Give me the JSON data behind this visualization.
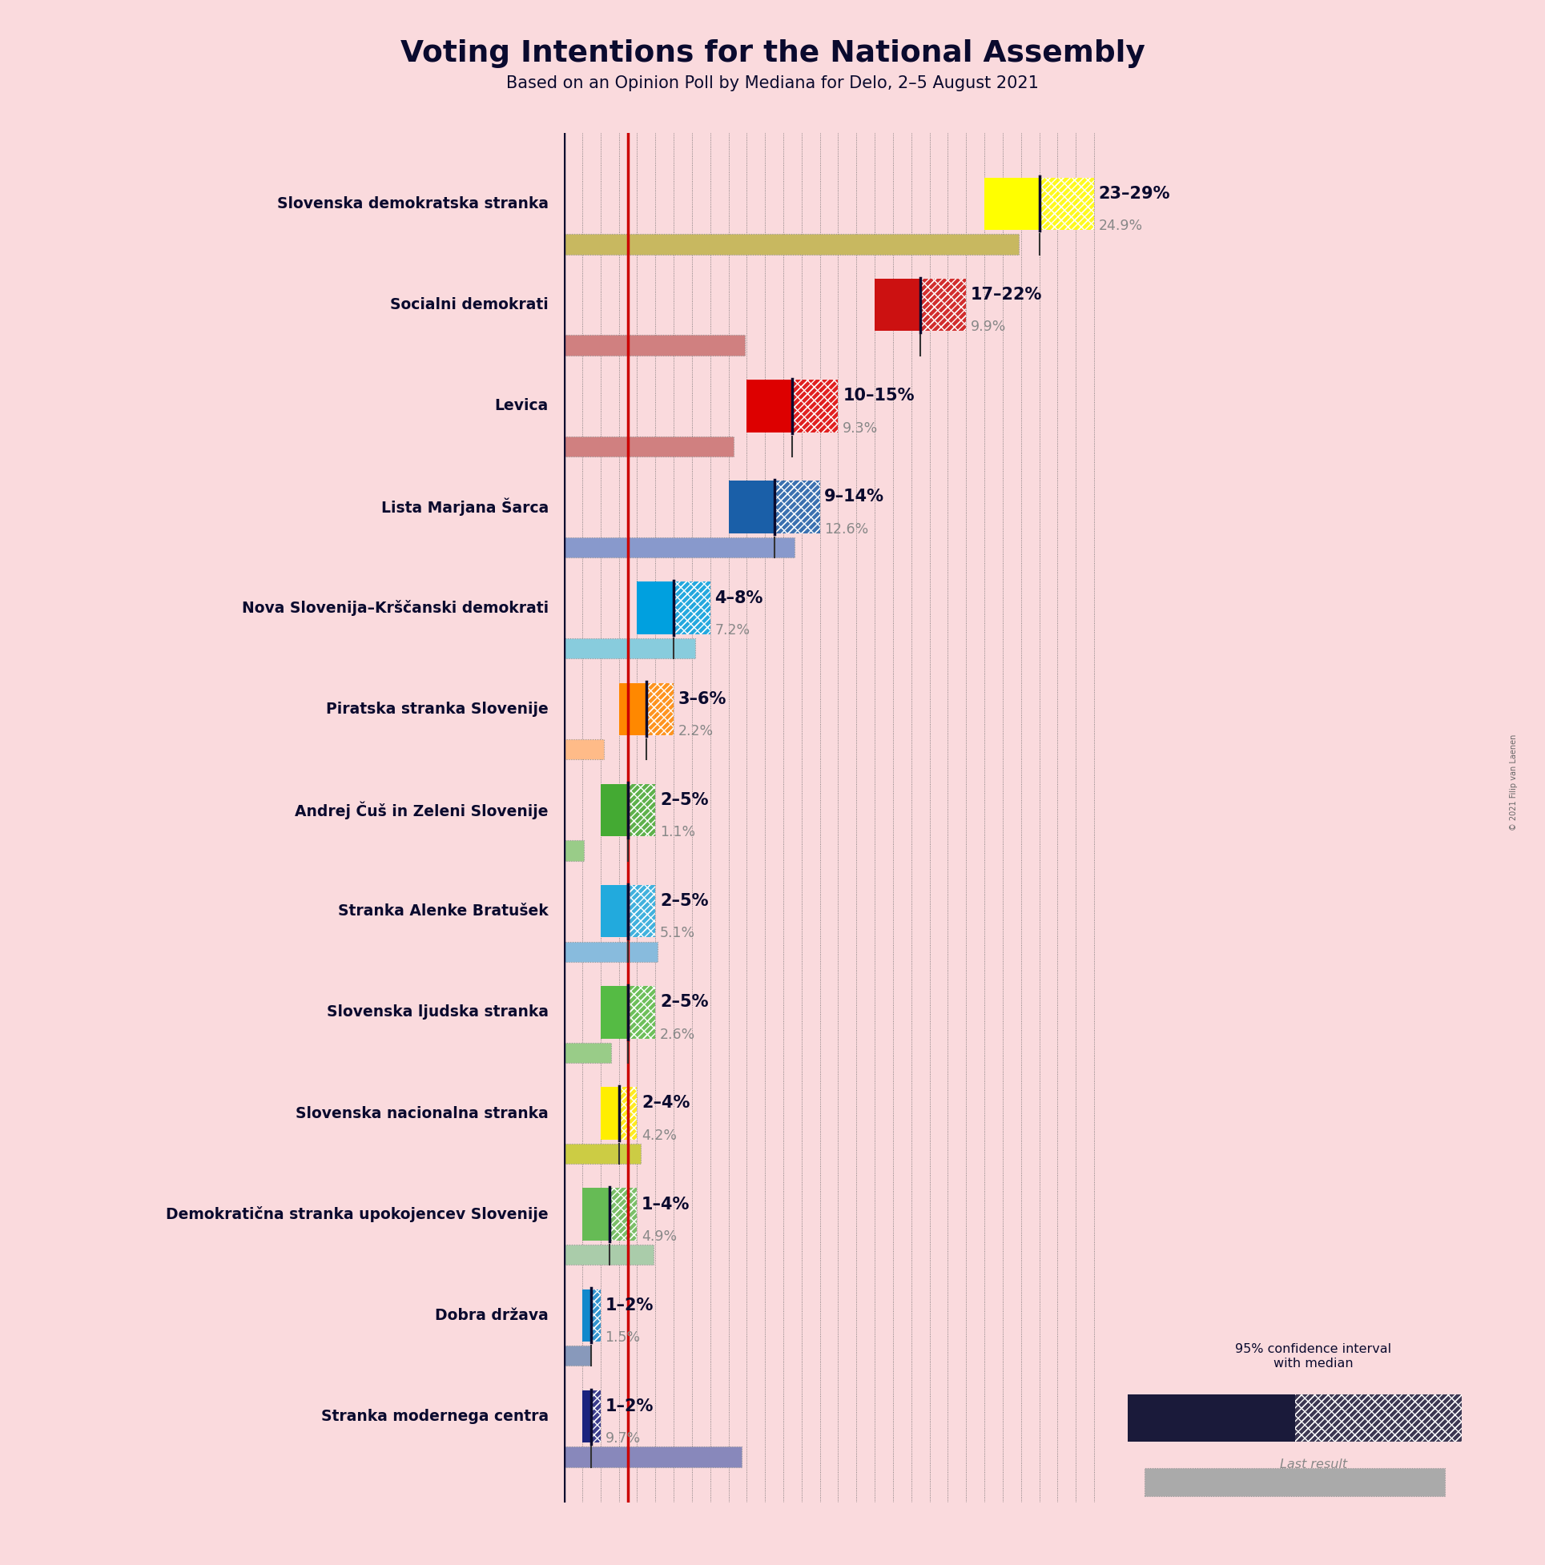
{
  "title": "Voting Intentions for the National Assembly",
  "subtitle": "Based on an Opinion Poll by Mediana for Delo, 2–5 August 2021",
  "background_color": "#fadadd",
  "parties": [
    {
      "name": "Slovenska demokratska stranka",
      "ci_low": 23,
      "ci_high": 29,
      "median": 26,
      "last_result": 24.9,
      "color": "#ffff00",
      "last_color": "#c8b860",
      "label": "23–29%",
      "last_label": "24.9%"
    },
    {
      "name": "Socialni demokrati",
      "ci_low": 17,
      "ci_high": 22,
      "median": 19.5,
      "last_result": 9.9,
      "color": "#cc1111",
      "last_color": "#d08080",
      "label": "17–22%",
      "last_label": "9.9%"
    },
    {
      "name": "Levica",
      "ci_low": 10,
      "ci_high": 15,
      "median": 12.5,
      "last_result": 9.3,
      "color": "#dd0000",
      "last_color": "#d08080",
      "label": "10–15%",
      "last_label": "9.3%"
    },
    {
      "name": "Lista Marjana Šarca",
      "ci_low": 9,
      "ci_high": 14,
      "median": 11.5,
      "last_result": 12.6,
      "color": "#1a5fa8",
      "last_color": "#8899cc",
      "label": "9–14%",
      "last_label": "12.6%"
    },
    {
      "name": "Nova Slovenija–Krščanski demokrati",
      "ci_low": 4,
      "ci_high": 8,
      "median": 6,
      "last_result": 7.2,
      "color": "#00a0df",
      "last_color": "#88ccdd",
      "label": "4–8%",
      "last_label": "7.2%"
    },
    {
      "name": "Piratska stranka Slovenije",
      "ci_low": 3,
      "ci_high": 6,
      "median": 4.5,
      "last_result": 2.2,
      "color": "#ff8800",
      "last_color": "#ffbb88",
      "label": "3–6%",
      "last_label": "2.2%"
    },
    {
      "name": "Andrej Čuš in Zeleni Slovenije",
      "ci_low": 2,
      "ci_high": 5,
      "median": 3.5,
      "last_result": 1.1,
      "color": "#44aa33",
      "last_color": "#99cc88",
      "label": "2–5%",
      "last_label": "1.1%"
    },
    {
      "name": "Stranka Alenke Bratušek",
      "ci_low": 2,
      "ci_high": 5,
      "median": 3.5,
      "last_result": 5.1,
      "color": "#22aadd",
      "last_color": "#88bbdd",
      "label": "2–5%",
      "last_label": "5.1%"
    },
    {
      "name": "Slovenska ljudska stranka",
      "ci_low": 2,
      "ci_high": 5,
      "median": 3.5,
      "last_result": 2.6,
      "color": "#55bb44",
      "last_color": "#99cc88",
      "label": "2–5%",
      "last_label": "2.6%"
    },
    {
      "name": "Slovenska nacionalna stranka",
      "ci_low": 2,
      "ci_high": 4,
      "median": 3,
      "last_result": 4.2,
      "color": "#ffee00",
      "last_color": "#cccc44",
      "label": "2–4%",
      "last_label": "4.2%"
    },
    {
      "name": "Demokratična stranka upokojencev Slovenije",
      "ci_low": 1,
      "ci_high": 4,
      "median": 2.5,
      "last_result": 4.9,
      "color": "#66bb55",
      "last_color": "#aaccaa",
      "label": "1–4%",
      "last_label": "4.9%"
    },
    {
      "name": "Dobra država",
      "ci_low": 1,
      "ci_high": 2,
      "median": 1.5,
      "last_result": 1.5,
      "color": "#1188cc",
      "last_color": "#8899bb",
      "label": "1–2%",
      "last_label": "1.5%"
    },
    {
      "name": "Stranka modernega centra",
      "ci_low": 1,
      "ci_high": 2,
      "median": 1.5,
      "last_result": 9.7,
      "color": "#1a237e",
      "last_color": "#8888bb",
      "label": "1–2%",
      "last_label": "9.7%"
    }
  ],
  "x_max": 30,
  "red_line_x": 3.5,
  "legend_text_ci": "95% confidence interval\nwith median",
  "legend_text_last": "Last result",
  "copyright": "© 2021 Filip van Laenen"
}
